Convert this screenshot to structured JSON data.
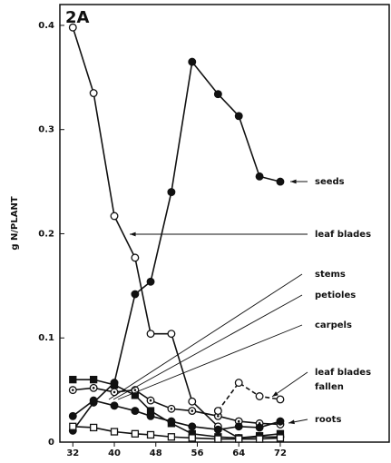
{
  "chart_data": {
    "type": "line",
    "title": "2A",
    "ylabel": "g N/PLANT",
    "x": [
      32,
      36,
      40,
      44,
      47,
      51,
      55,
      60,
      64,
      68,
      72
    ],
    "xlim": [
      29.5,
      93
    ],
    "xticks": [
      32,
      40,
      48,
      56,
      64,
      72
    ],
    "ylim": [
      0,
      0.42
    ],
    "yticks": [
      0,
      0.1,
      0.2,
      0.3,
      0.4
    ],
    "series": [
      {
        "name": "seeds",
        "color": "#111",
        "marker": "filled-circle",
        "values": [
          0.011,
          0.038,
          0.057,
          0.142,
          0.154,
          0.24,
          0.365,
          0.334,
          0.313,
          0.255,
          0.25
        ]
      },
      {
        "name": "leaf blades",
        "color": "#111",
        "marker": "open-circle",
        "values": [
          0.398,
          0.335,
          0.217,
          0.177,
          0.104,
          0.104,
          0.039,
          0.015,
          0.004,
          0.005,
          0.005
        ]
      },
      {
        "name": "stems",
        "color": "#111",
        "marker": "filled-square",
        "values": [
          0.06,
          0.06,
          0.055,
          0.045,
          0.03,
          0.018,
          0.008,
          0.005,
          0.004,
          0.006,
          0.008
        ]
      },
      {
        "name": "petioles",
        "color": "#111",
        "marker": "dotted-circle",
        "values": [
          0.05,
          0.052,
          0.048,
          0.05,
          0.04,
          0.032,
          0.03,
          0.025,
          0.02,
          0.018,
          0.017
        ]
      },
      {
        "name": "carpels",
        "color": "#111",
        "marker": "open-square",
        "values": [
          0.015,
          0.014,
          0.01,
          0.008,
          0.007,
          0.005,
          0.004,
          0.003,
          0.003,
          0.003,
          0.004
        ]
      },
      {
        "name": "leaf blades fallen",
        "color": "#111",
        "marker": "open-circle",
        "dash": true,
        "values": [
          null,
          null,
          null,
          null,
          null,
          null,
          null,
          0.03,
          0.057,
          0.044,
          0.041
        ]
      },
      {
        "name": "roots",
        "color": "#111",
        "marker": "filled-circle",
        "values": [
          0.025,
          0.04,
          0.035,
          0.03,
          0.025,
          0.02,
          0.015,
          0.012,
          0.015,
          0.014,
          0.02
        ]
      }
    ],
    "annotations": [
      "seeds",
      "leaf blades",
      "stems",
      "petioles",
      "carpels",
      "leaf blades",
      "fallen",
      "roots"
    ]
  }
}
